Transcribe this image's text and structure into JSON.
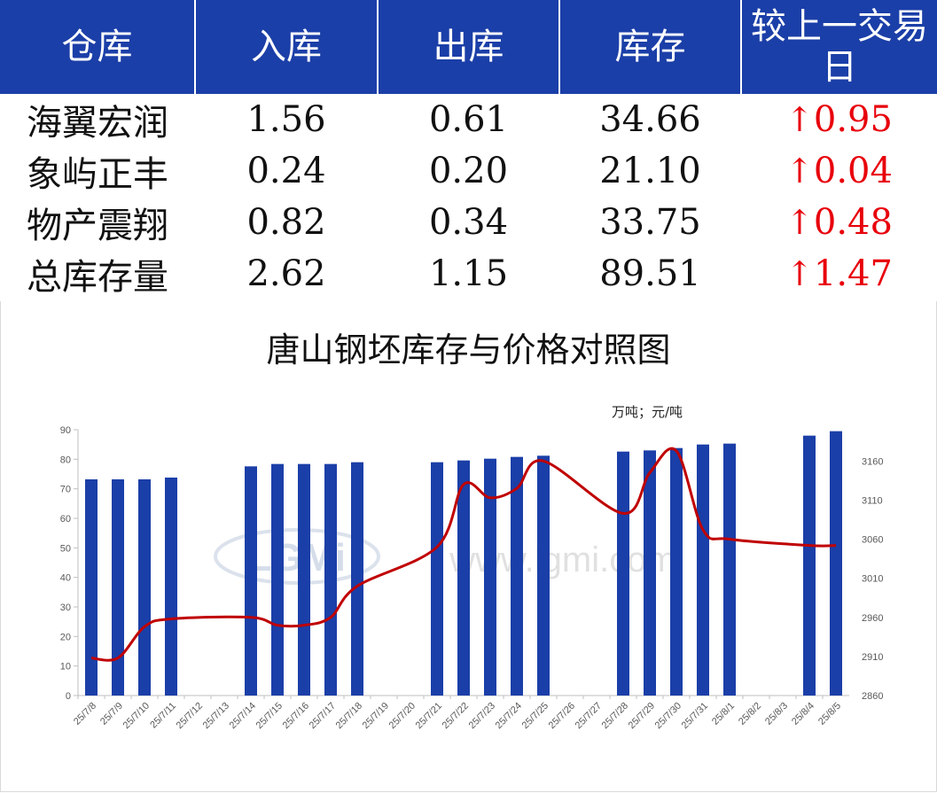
{
  "table": {
    "headers": [
      "仓库",
      "入库",
      "出库",
      "库存",
      "较上一交易日"
    ],
    "rows": [
      {
        "name": "海翼宏润",
        "in": "1.56",
        "out": "0.61",
        "stock": "34.66",
        "delta": "0.95",
        "dir": "up"
      },
      {
        "name": "象屿正丰",
        "in": "0.24",
        "out": "0.20",
        "stock": "21.10",
        "delta": "0.04",
        "dir": "up"
      },
      {
        "name": "物产震翔",
        "in": "0.82",
        "out": "0.34",
        "stock": "33.75",
        "delta": "0.48",
        "dir": "up"
      },
      {
        "name": "总库存量",
        "in": "2.62",
        "out": "1.15",
        "stock": "89.51",
        "delta": "1.47",
        "dir": "up"
      }
    ],
    "header_color": "#1b3fa8",
    "up_color": "#e8000b"
  },
  "chart_data": {
    "type": "bar+line",
    "title": "唐山钢坯库存与价格对照图",
    "unit_label": "万吨；元/吨",
    "watermark": "www.lgmi.com",
    "categories": [
      "25/7/8",
      "25/7/9",
      "25/7/10",
      "25/7/11",
      "25/7/12",
      "25/7/13",
      "25/7/14",
      "25/7/15",
      "25/7/16",
      "25/7/17",
      "25/7/18",
      "25/7/19",
      "25/7/20",
      "25/7/21",
      "25/7/22",
      "25/7/23",
      "25/7/24",
      "25/7/25",
      "25/7/26",
      "25/7/27",
      "25/7/28",
      "25/7/29",
      "25/7/30",
      "25/7/31",
      "25/8/1",
      "25/8/2",
      "25/8/3",
      "25/8/4",
      "25/8/5"
    ],
    "series": [
      {
        "kind": "bar",
        "axis": "left",
        "color": "#1b3fa8",
        "values": [
          73.2,
          73.2,
          73.2,
          73.8,
          null,
          null,
          77.6,
          78.4,
          78.4,
          78.4,
          79.0,
          null,
          null,
          79.0,
          79.6,
          80.2,
          80.8,
          81.2,
          null,
          null,
          82.6,
          83.0,
          83.8,
          85.0,
          85.3,
          null,
          null,
          88.0,
          89.51
        ]
      },
      {
        "kind": "line",
        "axis": "right",
        "color": "#c00000",
        "smooth": true,
        "points": [
          [
            0,
            2908
          ],
          [
            1,
            2908
          ],
          [
            2,
            2948
          ],
          [
            3,
            2958
          ],
          [
            6,
            2960
          ],
          [
            7,
            2950
          ],
          [
            8,
            2950
          ],
          [
            9,
            2960
          ],
          [
            10,
            3000
          ],
          [
            13,
            3050
          ],
          [
            14,
            3130
          ],
          [
            15,
            3113
          ],
          [
            16,
            3125
          ],
          [
            17,
            3160
          ],
          [
            20,
            3093
          ],
          [
            21,
            3145
          ],
          [
            22,
            3173
          ],
          [
            23,
            3072
          ],
          [
            24,
            3060
          ],
          [
            27,
            3052
          ],
          [
            28,
            3052
          ]
        ]
      }
    ],
    "y_left": {
      "min": 0,
      "max": 90,
      "ticks": [
        0,
        10,
        20,
        30,
        40,
        50,
        60,
        70,
        80,
        90
      ]
    },
    "y_right": {
      "min": 2860,
      "max": 3200,
      "ticks": [
        2860,
        2910,
        2960,
        3010,
        3060,
        3110,
        3160
      ]
    },
    "grid": false,
    "legend": "none"
  }
}
